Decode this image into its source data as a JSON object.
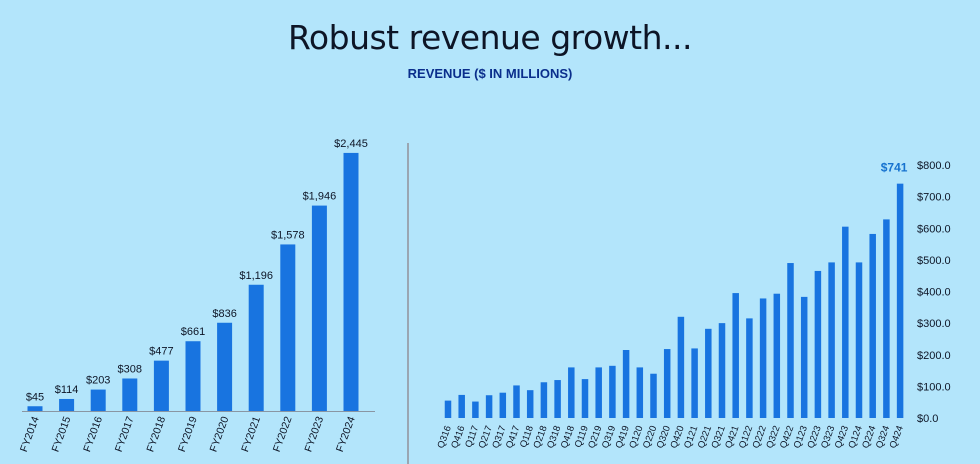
{
  "header": {
    "title": "Robust revenue growth...",
    "subtitle": "REVENUE ($ IN MILLIONS)"
  },
  "colors": {
    "background": "#b3e5fb",
    "bar": "#1874e0",
    "highlight_label": "#1672cf",
    "text": "#0d1526"
  },
  "chart_data": [
    {
      "type": "bar",
      "title": "",
      "xlabel": "",
      "ylabel": "",
      "ylim": [
        0,
        2700
      ],
      "categories": [
        "FY2014",
        "FY2015",
        "FY2016",
        "FY2017",
        "FY2018",
        "FY2019",
        "FY2020",
        "FY2021",
        "FY2022",
        "FY2023",
        "FY2024"
      ],
      "values": [
        45,
        114,
        203,
        308,
        477,
        661,
        836,
        1196,
        1578,
        1946,
        2445
      ],
      "data_labels": [
        "$45",
        "$114",
        "$203",
        "$308",
        "$477",
        "$661",
        "$836",
        "$1,196",
        "$1,578",
        "$1,946",
        "$2,445"
      ]
    },
    {
      "type": "bar",
      "title": "",
      "xlabel": "",
      "ylabel": "",
      "ylim": [
        0,
        800
      ],
      "y_axis_position": "right",
      "yticks": [
        0,
        100,
        200,
        300,
        400,
        500,
        600,
        700,
        800
      ],
      "ytick_labels": [
        "$0.0",
        "$100.0",
        "$200.0",
        "$300.0",
        "$400.0",
        "$500.0",
        "$600.0",
        "$700.0",
        "$800.0"
      ],
      "categories": [
        "Q316",
        "Q416",
        "Q117",
        "Q217",
        "Q317",
        "Q417",
        "Q118",
        "Q218",
        "Q318",
        "Q418",
        "Q119",
        "Q219",
        "Q319",
        "Q419",
        "Q120",
        "Q220",
        "Q320",
        "Q420",
        "Q121",
        "Q221",
        "Q321",
        "Q421",
        "Q122",
        "Q222",
        "Q322",
        "Q422",
        "Q123",
        "Q223",
        "Q323",
        "Q423",
        "Q124",
        "Q224",
        "Q324",
        "Q424"
      ],
      "values": [
        55,
        73,
        52,
        72,
        80,
        103,
        88,
        113,
        120,
        160,
        123,
        160,
        165,
        215,
        160,
        140,
        218,
        320,
        220,
        282,
        300,
        395,
        315,
        378,
        393,
        490,
        383,
        465,
        492,
        605,
        492,
        582,
        628,
        741
      ],
      "highlight_label": "$741"
    }
  ]
}
